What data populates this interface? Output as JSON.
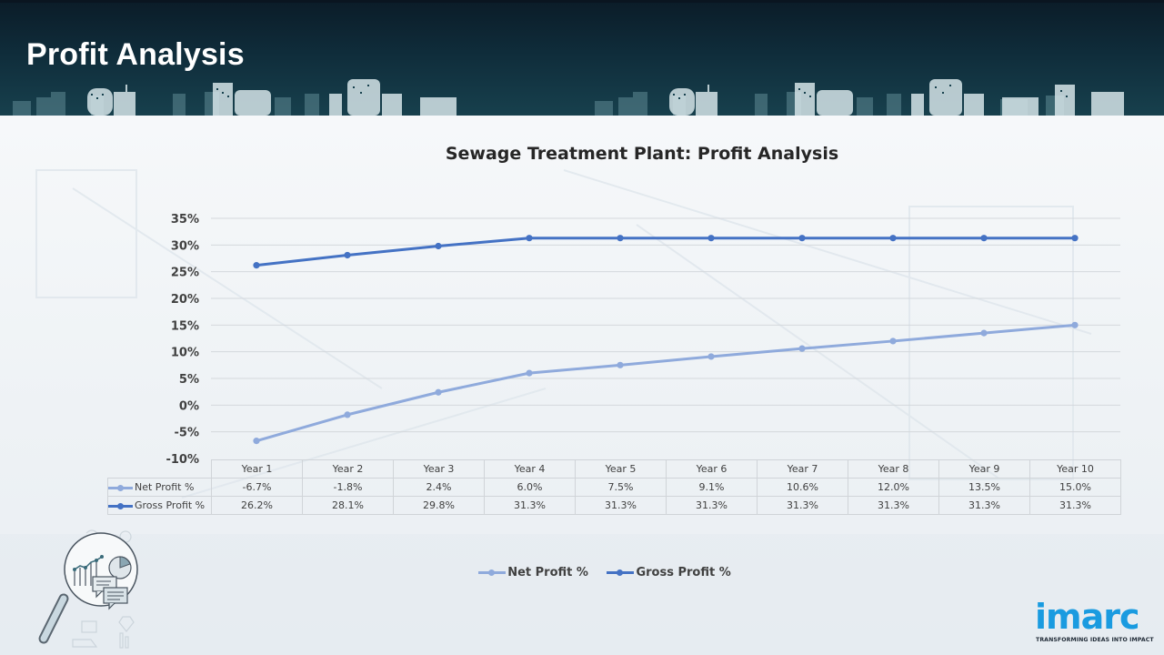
{
  "header": {
    "title": "Profit Analysis"
  },
  "colors": {
    "net_profit": "#8faadc",
    "gross_profit": "#4472c4",
    "banner": "#0f2c3a",
    "logo": "#1a9be0"
  },
  "chart_data": {
    "type": "line",
    "title": "Sewage Treatment Plant: Profit Analysis",
    "xlabel": "",
    "ylabel": "",
    "categories": [
      "Year 1",
      "Year 2",
      "Year 3",
      "Year 4",
      "Year 5",
      "Year 6",
      "Year 7",
      "Year 8",
      "Year 9",
      "Year 10"
    ],
    "ylim": [
      -10,
      35
    ],
    "yticks": [
      35,
      30,
      25,
      20,
      15,
      10,
      5,
      0,
      -5,
      -10
    ],
    "ytick_labels": [
      "35%",
      "30%",
      "25%",
      "20%",
      "15%",
      "10%",
      "5%",
      "0%",
      "-5%",
      "-10%"
    ],
    "grid": true,
    "legend_position": "bottom",
    "series": [
      {
        "name": "Net Profit %",
        "table_label": "Net Profit %",
        "color": "#8faadc",
        "values": [
          -6.7,
          -1.8,
          2.4,
          6.0,
          7.5,
          9.1,
          10.6,
          12.0,
          13.5,
          15.0
        ],
        "value_labels": [
          "-6.7%",
          "-1.8%",
          "2.4%",
          "6.0%",
          "7.5%",
          "9.1%",
          "10.6%",
          "12.0%",
          "13.5%",
          "15.0%"
        ]
      },
      {
        "name": "Gross Profit %",
        "table_label": "Gross Profit %",
        "color": "#4472c4",
        "values": [
          26.2,
          28.1,
          29.8,
          31.3,
          31.3,
          31.3,
          31.3,
          31.3,
          31.3,
          31.3
        ],
        "value_labels": [
          "26.2%",
          "28.1%",
          "29.8%",
          "31.3%",
          "31.3%",
          "31.3%",
          "31.3%",
          "31.3%",
          "31.3%",
          "31.3%"
        ]
      }
    ]
  },
  "branding": {
    "logo_text": "imarc",
    "tagline": "TRANSFORMING IDEAS INTO IMPACT"
  },
  "icons": {
    "analysis": "magnifier-chart-icon"
  }
}
